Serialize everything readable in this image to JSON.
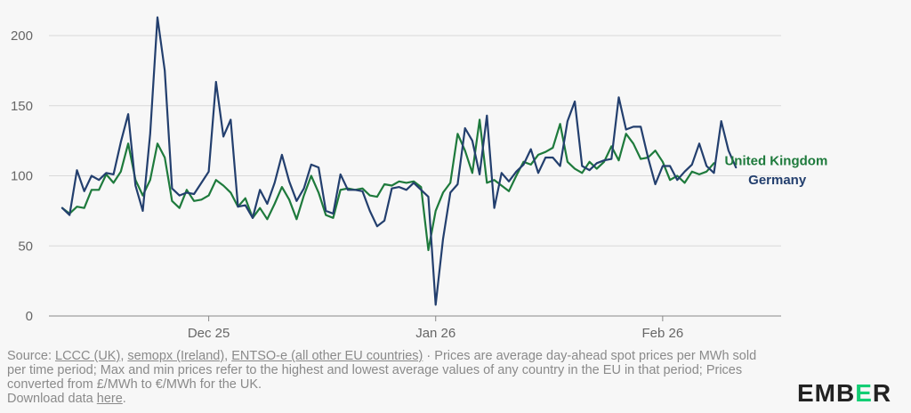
{
  "colors": {
    "uk": "#1e7a3c",
    "germany": "#233f6e",
    "grid": "#d9d9d9",
    "axis": "#888888",
    "logo_accent": "#13ce74"
  },
  "chart_data": {
    "type": "line",
    "title": "",
    "xlabel": "",
    "ylabel": "",
    "ylim": [
      0,
      220
    ],
    "yticks": [
      "0",
      "50",
      "100",
      "150",
      "200"
    ],
    "x_tick_labels": [
      {
        "label": "Dec 25",
        "day_index": 20
      },
      {
        "label": "Jan 26",
        "day_index": 51
      },
      {
        "label": "Feb 26",
        "day_index": 82
      }
    ],
    "series": [
      {
        "name": "United Kingdom",
        "color": "#1e7a3c",
        "values": [
          77,
          73,
          78,
          77,
          90,
          90,
          101,
          95,
          103,
          123,
          97,
          86,
          97,
          123,
          113,
          82,
          77,
          90,
          82,
          83,
          86,
          97,
          93,
          88,
          78,
          84,
          70,
          77,
          69,
          80,
          92,
          83,
          69,
          86,
          100,
          88,
          72,
          70,
          90,
          91,
          90,
          91,
          86,
          85,
          94,
          93,
          96,
          95,
          96,
          92,
          47,
          75,
          88,
          95,
          130,
          118,
          102,
          140,
          95,
          97,
          93,
          89,
          100,
          110,
          108,
          115,
          117,
          120,
          137,
          110,
          105,
          102,
          110,
          105,
          110,
          121,
          111,
          130,
          123,
          112,
          113,
          118,
          110,
          97,
          100,
          95,
          103,
          101,
          103,
          109
        ],
        "end_label": "United Kingdom"
      },
      {
        "name": "Germany",
        "color": "#233f6e",
        "values": [
          77,
          72,
          104,
          89,
          100,
          97,
          102,
          101,
          124,
          144,
          93,
          75,
          130,
          213,
          175,
          91,
          86,
          88,
          87,
          95,
          103,
          167,
          128,
          140,
          78,
          79,
          70,
          90,
          80,
          95,
          115,
          96,
          82,
          91,
          108,
          106,
          75,
          73,
          101,
          90,
          90,
          89,
          75,
          64,
          68,
          91,
          92,
          90,
          95,
          90,
          85,
          8,
          55,
          88,
          94,
          134,
          125,
          101,
          143,
          77,
          102,
          96,
          103,
          108,
          119,
          102,
          113,
          113,
          107,
          139,
          153,
          107,
          104,
          109,
          111,
          112,
          156,
          133,
          135,
          135,
          113,
          94,
          107,
          107,
          97,
          103,
          108,
          123,
          107,
          102,
          139,
          118,
          106
        ],
        "end_label": "Germany"
      }
    ]
  },
  "footer": {
    "prefix": "Source: ",
    "link1": "LCCC (UK)",
    "sep1": ", ",
    "link2": "semopx (Ireland)",
    "sep2": ", ",
    "link3": "ENTSO-e (all other EU countries)",
    "body": " · Prices are average day-ahead spot prices per MWh sold per time period; Max and min prices refer to the highest and lowest average values of any country in the EU in that period; Prices converted from £/MWh to €/MWh for the UK.",
    "download_prefix": "Download data ",
    "download_link": "here",
    "download_suffix": "."
  },
  "logo": {
    "part1": "EMB",
    "part2": "E",
    "part3": "R"
  }
}
